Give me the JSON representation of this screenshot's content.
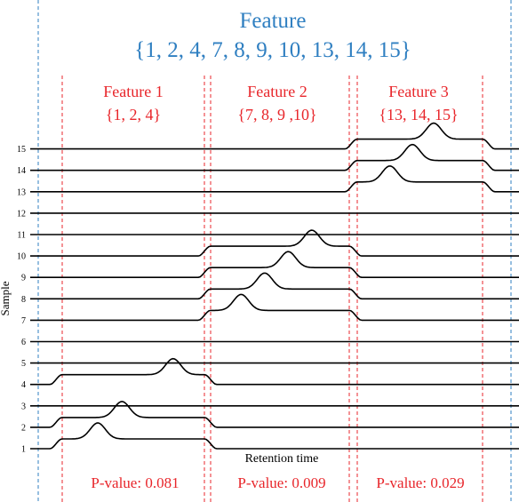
{
  "header": {
    "title": "Feature",
    "set": "{1, 2, 4, 7, 8, 9, 10, 13, 14, 15}"
  },
  "features": [
    {
      "label": "Feature 1",
      "set": "{1, 2, 4}",
      "pvalue": "P-value: 0.081"
    },
    {
      "label": "Feature 2",
      "set": "{7, 8, 9 ,10}",
      "pvalue": "P-value: 0.009"
    },
    {
      "label": "Feature 3",
      "set": "{13, 14, 15}",
      "pvalue": "P-value: 0.029"
    }
  ],
  "axes": {
    "ylabel": "Sample",
    "xlabel": "Retention time"
  },
  "samples": {
    "labels": [
      "1",
      "2",
      "3",
      "4",
      "5",
      "6",
      "7",
      "8",
      "9",
      "10",
      "11",
      "12",
      "13",
      "14",
      "15"
    ],
    "peaks": [
      {
        "sample": 1,
        "feature": 1,
        "rt": 0.25
      },
      {
        "sample": 2,
        "feature": 1,
        "rt": 0.42
      },
      {
        "sample": 4,
        "feature": 1,
        "rt": 0.78
      },
      {
        "sample": 7,
        "feature": 2,
        "rt": 0.22
      },
      {
        "sample": 8,
        "feature": 2,
        "rt": 0.39
      },
      {
        "sample": 9,
        "feature": 2,
        "rt": 0.56
      },
      {
        "sample": 10,
        "feature": 2,
        "rt": 0.73
      },
      {
        "sample": 13,
        "feature": 3,
        "rt": 0.26
      },
      {
        "sample": 14,
        "feature": 3,
        "rt": 0.44
      },
      {
        "sample": 15,
        "feature": 3,
        "rt": 0.61
      }
    ]
  },
  "colors": {
    "header": "#2f7fc1",
    "feature": "#e8262b",
    "trace": "#000000"
  }
}
